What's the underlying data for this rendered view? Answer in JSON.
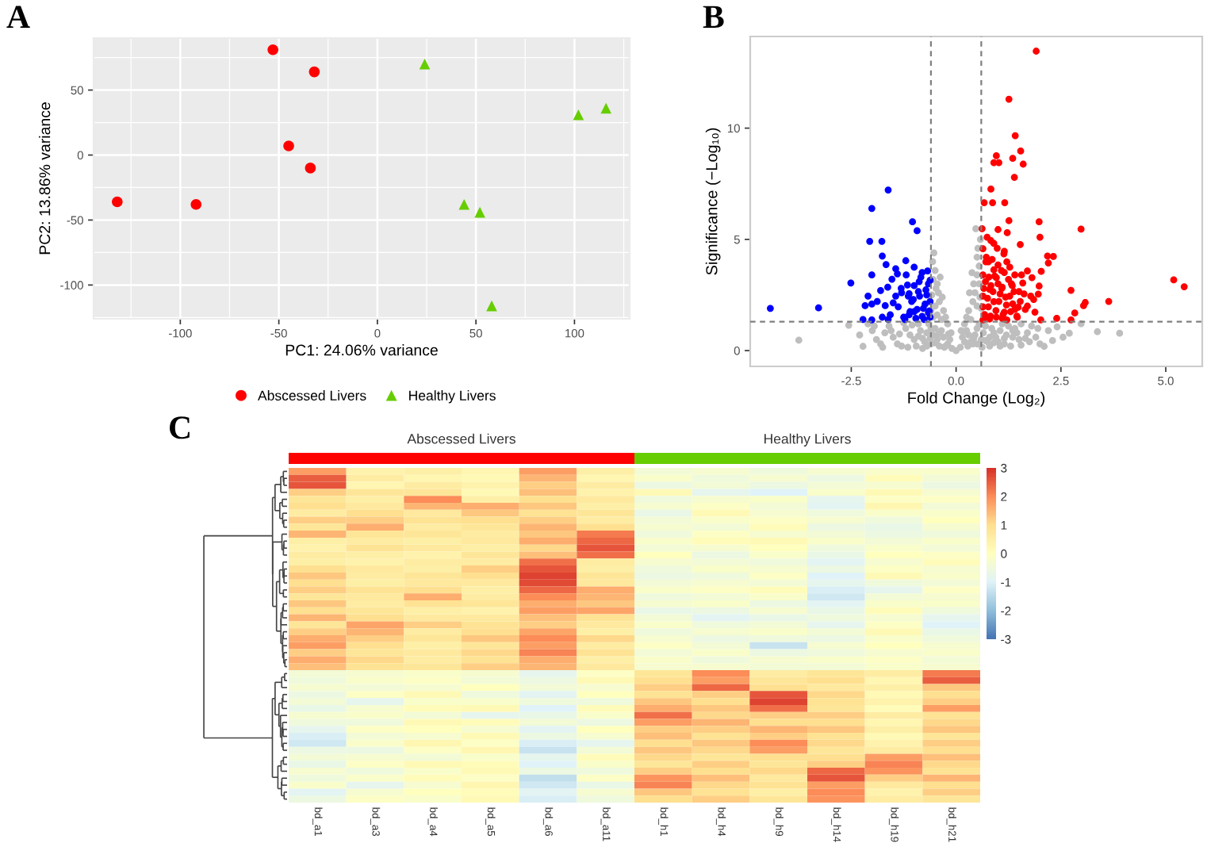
{
  "chart_data": [
    {
      "type": "scatter",
      "title": "A",
      "xlabel": "PC1: 24.06% variance",
      "ylabel": "PC2: 13.86% variance",
      "series": [
        {
          "name": "Abscessed Livers",
          "color": "#ff0000",
          "marker": "circle",
          "x": [
            -53,
            -32,
            -45,
            -34,
            -132,
            -92
          ],
          "values": [
            81,
            64,
            7,
            -10,
            -36,
            -38
          ]
        },
        {
          "name": "Healthy Livers",
          "color": "#66cd00",
          "marker": "triangle",
          "x": [
            24,
            102,
            116,
            44,
            52,
            58
          ],
          "values": [
            70,
            31,
            36,
            -38,
            -44,
            -116
          ]
        }
      ],
      "xlim": [
        -144,
        128
      ],
      "ylim": [
        -126,
        90
      ],
      "xticks": [
        -100,
        -50,
        0,
        50,
        100
      ],
      "yticks": [
        -100,
        -50,
        0,
        50
      ],
      "grid": true,
      "legend": "bottom"
    },
    {
      "type": "scatter",
      "title": "B",
      "xlabel": "Fold Change (Log₂)",
      "ylabel": "Significance (−Log₁₀)",
      "marker": "circle",
      "series": [
        {
          "color": "#bebebe",
          "x": [
            -3.75,
            -2.56,
            -2.22,
            -2.0,
            -1.8,
            -1.6,
            -1.5,
            -1.3,
            -1.2,
            -1.0,
            -0.9,
            -0.8,
            -0.7,
            -0.6,
            -0.5,
            -0.4,
            -0.3,
            -0.2,
            -0.1,
            0,
            0.1,
            0.2,
            0.3,
            0.4,
            0.5,
            0.6,
            0.7,
            0.8,
            0.9,
            1.0,
            1.1,
            1.2,
            1.3,
            1.4,
            1.5,
            1.65,
            1.8,
            2.0,
            2.1,
            2.2,
            2.41,
            2.7,
            2.98,
            3.37,
            3.9,
            -0.55,
            -0.45,
            -0.35,
            -0.5,
            -0.4,
            -0.58,
            -0.48,
            -0.55,
            -0.5,
            -0.56,
            -0.53,
            -0.45,
            -0.3,
            -0.25,
            -0.42,
            0.25,
            0.3,
            0.4,
            0.35,
            0.5,
            0.45,
            0.55,
            0.5,
            0.55,
            0.5,
            0.52,
            0.47,
            0.58,
            0.42,
            0.57,
            -1.9,
            -1.7,
            -1.4,
            -1.1,
            -0.95,
            -0.85,
            -0.75,
            -0.65,
            -0.55,
            -0.45,
            -0.35,
            -0.25,
            -0.15,
            0.15,
            0.25,
            0.35,
            0.45,
            0.55,
            0.65,
            0.75,
            0.85,
            0.95,
            1.05,
            1.15,
            1.25,
            1.35,
            1.45,
            1.55,
            1.7,
            1.9,
            -1.25,
            -0.6,
            -0.38,
            0.38,
            -0.33,
            0.32,
            -0.2,
            0.2,
            -0.12,
            0.12,
            -2.3,
            -2.1,
            -1.95,
            -1.75,
            -1.55,
            -1.35,
            -1.15,
            -1.05,
            -0.9,
            -0.8,
            -0.7,
            -0.62,
            -0.5,
            -0.42,
            -0.28,
            -0.18,
            0.18,
            0.28,
            0.42,
            0.5,
            0.62,
            0.7,
            0.8,
            0.9,
            1.05,
            1.15,
            1.35,
            1.55,
            1.75,
            1.95,
            2.3,
            2.55,
            -0.6,
            0.6
          ],
          "values": [
            0.47,
            1.14,
            0.19,
            0.9,
            0.3,
            1.1,
            0.6,
            0.2,
            1.0,
            0.5,
            1.2,
            0.1,
            0.8,
            0.3,
            1.0,
            0.2,
            0.6,
            0.3,
            0.1,
            0,
            0.15,
            0.4,
            0.7,
            0.3,
            1.0,
            0.5,
            1.1,
            0.2,
            0.8,
            0.4,
            1.2,
            0.7,
            0.2,
            1.0,
            0.5,
            0.55,
            1.1,
            0.3,
            0.19,
            0.9,
            1.07,
            0.78,
            1.21,
            0.85,
            0.78,
            1.5,
            1.6,
            1.4,
            2.0,
            2.2,
            2.5,
            2.8,
            3.2,
            3.6,
            4.0,
            4.39,
            3.0,
            1.8,
            1.5,
            2.6,
            1.5,
            1.8,
            2.2,
            1.4,
            2.0,
            2.6,
            3.0,
            3.4,
            3.8,
            4.2,
            4.6,
            5.48,
            5.0,
            3.0,
            2.4,
            0.5,
            0.8,
            0.3,
            0.7,
            0.2,
            0.9,
            0.4,
            1.2,
            0.7,
            0.5,
            0.9,
            0.2,
            0.5,
            0.6,
            0.9,
            0.4,
            0.7,
            1.2,
            0.8,
            0.4,
            1.0,
            0.6,
            0.9,
            0.3,
            1.1,
            0.6,
            0.8,
            1.2,
            0.8,
            0.6,
            1.25,
            1.0,
            3.3,
            3.5,
            2.4,
            2.6,
            1.2,
            1.2,
            0.8,
            0.9,
            0.7,
            1.2,
            1.1,
            0.15,
            0.9,
            0.75,
            0.15,
            1.15,
            0.65,
            0.55,
            0.2,
            0.55,
            0.35,
            0.75,
            0.15,
            0.75,
            0.85,
            0.2,
            0.55,
            0.3,
            0.15,
            0.45,
            0.6,
            0.35,
            0.2,
            0.55,
            0.9,
            0.25,
            0.4,
            1.0,
            0.45,
            0.6,
            1.8,
            1.9
          ]
        },
        {
          "color": "#0000ff",
          "x": [
            -4.43,
            -3.28,
            -2.51,
            -2.01,
            -1.62,
            -2.06,
            -1.77,
            -1.04,
            -0.93,
            -1.76,
            -1.67,
            -1.2,
            -2.01,
            -2.22,
            -1.44,
            -1.53,
            -1.63,
            -2.1,
            -1.88,
            -2.17,
            -1.19,
            -1.0,
            -0.81,
            -0.68,
            -0.62,
            -0.87,
            -1.06,
            -1.38,
            -1.57,
            -1.76,
            -2.01,
            -1.12,
            -0.81,
            -0.62,
            -1.31,
            -0.74,
            -0.93,
            -1.25,
            -1.44,
            -0.62,
            -0.72,
            -1.12,
            -1.0,
            -0.64,
            -1.69,
            -2.01,
            -0.66,
            -0.7,
            -0.78,
            -0.84,
            -0.9,
            -0.96,
            -1.02,
            -1.1,
            -1.16,
            -1.22,
            -1.3,
            -1.4,
            -0.66,
            -0.76,
            -0.88,
            -1.0,
            -1.14,
            -1.5,
            -1.62,
            -1.8
          ],
          "values": [
            1.9,
            1.92,
            3.04,
            6.39,
            7.22,
            4.91,
            4.91,
            5.79,
            5.39,
            4.25,
            3.87,
            4.04,
            3.4,
            1.4,
            3.68,
            3.21,
            2.85,
            2.45,
            2.21,
            2.02,
            3.4,
            2.92,
            3.51,
            3.58,
            3.16,
            2.45,
            2.21,
            1.97,
            1.61,
            1.5,
            1.38,
            1.61,
            1.54,
            1.5,
            2.8,
            2.09,
            1.85,
            1.5,
            2.45,
            2.21,
            2.73,
            2.56,
            3.75,
            1.78,
            2.02,
            2.09,
            1.7,
            2.5,
            1.9,
            3.3,
            2.65,
            1.45,
            2.3,
            1.75,
            2.95,
            1.4,
            2.6,
            3.45,
            3.0,
            1.4,
            3.1,
            1.75,
            2.45,
            2.15,
            1.4,
            2.7
          ]
        },
        {
          "color": "#ff0000",
          "x": [
            1.91,
            1.26,
            1.41,
            0.96,
            1.35,
            1.54,
            1.6,
            1.39,
            0.9,
            1.02,
            0.83,
            0.67,
            0.87,
            1.16,
            1.26,
            1.98,
            2.98,
            2.0,
            1.53,
            0.62,
            1.0,
            0.83,
            1.15,
            2.18,
            2.32,
            2.2,
            1.7,
            2.03,
            5.19,
            5.44,
            2.74,
            1.98,
            1.96,
            3.64,
            3.08,
            3.04,
            2.83,
            2.74,
            2.4,
            2.02,
            0.71,
            0.64,
            0.9,
            1.15,
            1.4,
            1.59,
            1.78,
            1.65,
            1.46,
            1.21,
            0.96,
            0.64,
            0.77,
            1.02,
            1.28,
            1.53,
            0.64,
            0.83,
            1.09,
            1.34,
            0.64,
            1.15,
            1.4,
            0.96,
            0.77,
            0.64,
            0.71,
            1.21,
            1.81,
            1.88,
            0.9,
            0.68,
            0.75,
            0.82,
            0.88,
            0.95,
            1.05,
            1.12,
            1.2,
            1.3,
            1.38,
            1.45,
            0.7,
            0.8,
            0.9,
            1.0,
            1.1,
            1.25,
            1.35,
            1.5,
            0.66,
            0.78,
            0.92,
            1.08,
            1.18,
            1.32,
            1.48,
            1.62,
            0.72,
            0.86,
            1.0,
            1.14,
            1.28,
            1.7,
            1.85,
            0.74,
            0.98,
            1.22,
            1.56,
            0.8,
            1.1
          ],
          "values": [
            13.46,
            11.3,
            9.66,
            8.76,
            8.64,
            8.97,
            8.38,
            7.79,
            8.45,
            8.45,
            7.26,
            6.65,
            6.65,
            6.65,
            5.84,
            5.79,
            5.46,
            5.1,
            4.77,
            5.48,
            5.44,
            4.94,
            4.46,
            4.25,
            4.23,
            3.94,
            3.58,
            3.56,
            3.18,
            2.87,
            2.71,
            2.9,
            2.54,
            2.21,
            2.16,
            2.02,
            1.69,
            1.38,
            1.45,
            1.38,
            1.5,
            3.4,
            3.63,
            3.51,
            3.4,
            3.04,
            2.45,
            1.85,
            1.5,
            1.38,
            1.5,
            1.38,
            1.97,
            2.21,
            2.45,
            2.21,
            2.45,
            2.92,
            2.8,
            2.92,
            1.97,
            1.73,
            1.85,
            3.28,
            3.99,
            4.58,
            3.99,
            3.99,
            3.28,
            1.73,
            4.82,
            1.62,
            2.35,
            1.55,
            2.65,
            1.8,
            2.55,
            1.62,
            2.05,
            1.75,
            2.65,
            1.55,
            3.1,
            2.75,
            2.2,
            3.0,
            2.85,
            3.2,
            2.1,
            2.65,
            2.8,
            3.3,
            3.35,
            3.6,
            2.4,
            3.0,
            1.95,
            2.55,
            4.2,
            4.1,
            3.85,
            4.35,
            3.75,
            2.0,
            2.3,
            5.1,
            4.6,
            5.3,
            3.4,
            1.42,
            1.45
          ]
        }
      ],
      "xlim": [
        -4.91,
        5.87
      ],
      "ylim": [
        -0.71,
        14.12
      ],
      "xticks": [
        -2.5,
        {
          "value": 0,
          "label": "0.0"
        },
        2.5,
        {
          "value": 5,
          "label": "5.0"
        }
      ],
      "yticks": [
        0,
        5,
        10
      ],
      "ref_lines": [
        {
          "axis": "x",
          "value": -0.6,
          "color": "#808080",
          "line_style": "dashed"
        },
        {
          "axis": "x",
          "value": 0.6,
          "color": "#808080",
          "line_style": "dashed"
        },
        {
          "axis": "y",
          "value": 1.3,
          "color": "#808080",
          "line_style": "dashed"
        }
      ]
    },
    {
      "type": "heatmap",
      "title": "C",
      "tick_labels": "x",
      "categories": [
        "bd_a1",
        "bd_a3",
        "bd_a4",
        "bd_a5",
        "bd_a6",
        "bd_a11",
        "bd_h1",
        "bd_h4",
        "bd_h9",
        "bd_h14",
        "bd_h19",
        "bd_h21"
      ],
      "y_categories": [
        null,
        null,
        null,
        null,
        null,
        null,
        null,
        null,
        null,
        null,
        null,
        null,
        null,
        null,
        null,
        null,
        null,
        null,
        null,
        null,
        null,
        null,
        null,
        null,
        null,
        null,
        null,
        null,
        null,
        null,
        null,
        null,
        null,
        null,
        null,
        null,
        null,
        null,
        null,
        null,
        null,
        null,
        null,
        null,
        null,
        null,
        null,
        null
      ],
      "annotations": [
        "Abscessed Livers",
        "Healthy Livers"
      ],
      "clim": [
        -3,
        3
      ],
      "cticks": [
        -3,
        -2,
        -1,
        0,
        1,
        2,
        3
      ],
      "cells": [
        [
          1.8,
          0.4,
          0.5,
          0.3,
          1.8,
          0.5,
          -0.4,
          -0.3,
          -0.5,
          -0.3,
          -0.2,
          -0.2
        ],
        [
          2.5,
          0.6,
          0.3,
          0.2,
          1.5,
          0.3,
          -0.2,
          -0.5,
          -0.3,
          -0.6,
          0.1,
          -0.4
        ],
        [
          2.6,
          0.3,
          0.6,
          0.4,
          1.2,
          0.6,
          -0.6,
          -0.4,
          -0.6,
          -0.4,
          -0.3,
          -0.6
        ],
        [
          1.2,
          0.8,
          0.8,
          0.2,
          1.4,
          0.4,
          0.2,
          -0.8,
          -1.0,
          -0.2,
          0.2,
          -0.3
        ],
        [
          0.8,
          0.5,
          2.0,
          0.5,
          1.0,
          0.7,
          -0.5,
          -0.3,
          -0.2,
          -0.8,
          -0.1,
          -0.1
        ],
        [
          1.0,
          0.7,
          1.5,
          1.6,
          1.3,
          0.5,
          -0.3,
          -0.1,
          -0.4,
          -0.9,
          0.3,
          -0.4
        ],
        [
          0.6,
          1.0,
          0.7,
          1.3,
          0.9,
          0.8,
          -0.7,
          0.2,
          -0.3,
          -0.5,
          -0.2,
          -0.2
        ],
        [
          1.2,
          1.2,
          0.9,
          1.0,
          1.2,
          0.6,
          -0.4,
          -0.2,
          -0.1,
          -0.3,
          -0.5,
          0.0
        ],
        [
          0.8,
          1.6,
          0.6,
          0.8,
          1.5,
          1.0,
          -0.3,
          -0.4,
          0.1,
          -0.6,
          -0.7,
          -0.3
        ],
        [
          1.5,
          0.8,
          0.8,
          0.6,
          1.3,
          2.2,
          -0.5,
          -0.1,
          -0.3,
          -0.4,
          -0.6,
          -0.5
        ],
        [
          0.5,
          0.6,
          0.5,
          0.7,
          1.6,
          2.4,
          -0.2,
          0.1,
          0.2,
          -0.2,
          -0.4,
          -0.2
        ],
        [
          0.4,
          0.9,
          0.7,
          0.5,
          1.1,
          2.6,
          -0.4,
          -0.3,
          0.0,
          -0.5,
          -0.2,
          -0.4
        ],
        [
          0.6,
          0.5,
          0.4,
          0.8,
          1.4,
          2.3,
          0.0,
          -0.6,
          -0.2,
          -0.7,
          0.0,
          -0.1
        ],
        [
          0.5,
          0.4,
          0.6,
          0.6,
          2.3,
          0.6,
          -0.3,
          -0.4,
          -0.5,
          -0.9,
          -0.3,
          0.1
        ],
        [
          1.0,
          0.7,
          0.5,
          1.2,
          2.6,
          0.5,
          -0.5,
          -0.2,
          -0.3,
          -0.6,
          -0.1,
          -0.3
        ],
        [
          1.3,
          0.6,
          0.8,
          1.0,
          2.8,
          0.8,
          -0.6,
          -0.5,
          -0.1,
          -1.0,
          0.2,
          -0.2
        ],
        [
          1.0,
          0.5,
          0.7,
          0.7,
          2.7,
          0.7,
          -0.4,
          -0.3,
          -0.4,
          -0.8,
          -0.5,
          -0.4
        ],
        [
          1.2,
          0.9,
          1.0,
          0.5,
          2.4,
          1.6,
          -0.2,
          -0.1,
          0.1,
          -1.1,
          -0.8,
          -0.1
        ],
        [
          0.8,
          0.7,
          1.6,
          0.6,
          2.0,
          1.5,
          -0.5,
          -0.4,
          -0.2,
          -1.2,
          -0.4,
          -0.3
        ],
        [
          1.3,
          0.6,
          0.9,
          0.8,
          1.6,
          1.3,
          -0.3,
          -0.2,
          -0.6,
          -0.9,
          -0.2,
          -0.2
        ],
        [
          1.0,
          0.8,
          0.5,
          0.4,
          1.8,
          1.7,
          -0.7,
          -0.6,
          -0.3,
          -0.7,
          0.1,
          -0.5
        ],
        [
          1.5,
          1.0,
          0.7,
          0.7,
          1.4,
          0.9,
          -0.4,
          -0.9,
          -0.7,
          -0.5,
          -0.3,
          -0.8
        ],
        [
          0.8,
          1.7,
          1.2,
          0.9,
          1.2,
          0.7,
          -0.2,
          -0.5,
          -0.4,
          -0.8,
          -0.1,
          -1.0
        ],
        [
          1.2,
          1.5,
          0.6,
          1.0,
          1.7,
          0.5,
          -0.5,
          -0.3,
          -0.2,
          -0.4,
          0.2,
          -0.7
        ],
        [
          1.6,
          1.2,
          0.8,
          1.3,
          2.0,
          1.1,
          -0.3,
          -0.6,
          -0.5,
          -0.6,
          -0.2,
          -0.5
        ],
        [
          1.8,
          1.0,
          0.5,
          0.8,
          1.8,
          0.6,
          -0.1,
          -0.4,
          -1.3,
          -0.3,
          0.0,
          -0.3
        ],
        [
          1.2,
          0.8,
          0.7,
          1.1,
          2.1,
          0.9,
          -0.4,
          -0.2,
          -0.6,
          -0.5,
          -0.3,
          -0.2
        ],
        [
          1.6,
          1.1,
          0.6,
          0.9,
          1.6,
          0.5,
          -0.2,
          -0.5,
          -0.3,
          -0.2,
          -0.1,
          -0.4
        ],
        [
          1.4,
          0.9,
          0.8,
          1.2,
          1.5,
          0.7,
          -0.3,
          -0.3,
          -0.4,
          -0.4,
          -0.2,
          -0.3
        ],
        [
          -0.4,
          -0.3,
          -0.2,
          -0.3,
          -0.8,
          -0.1,
          0.8,
          2.0,
          0.6,
          0.8,
          0.6,
          2.2
        ],
        [
          -0.5,
          -0.2,
          -0.1,
          -0.4,
          -0.6,
          0.2,
          1.0,
          1.8,
          0.8,
          1.0,
          0.3,
          2.5
        ],
        [
          -0.3,
          -0.4,
          -0.3,
          0.0,
          -0.4,
          -0.3,
          1.2,
          2.4,
          1.0,
          0.7,
          0.5,
          1.3
        ],
        [
          -0.6,
          -0.1,
          0.2,
          -0.5,
          -0.9,
          0.0,
          0.9,
          1.2,
          2.6,
          1.1,
          0.2,
          1.0
        ],
        [
          -0.4,
          -0.8,
          -0.2,
          -0.2,
          -0.5,
          -0.5,
          1.3,
          1.0,
          2.8,
          0.9,
          0.4,
          1.2
        ],
        [
          -0.7,
          -0.3,
          0.1,
          0.2,
          -1.0,
          0.1,
          1.6,
          1.3,
          2.3,
          0.8,
          0.1,
          1.8
        ],
        [
          -0.3,
          -0.2,
          -0.4,
          -0.8,
          -0.7,
          -0.2,
          2.3,
          1.1,
          1.2,
          1.2,
          0.6,
          0.9
        ],
        [
          -0.5,
          -0.5,
          0.2,
          0.1,
          -0.4,
          -0.6,
          1.8,
          1.5,
          1.0,
          1.0,
          0.3,
          1.1
        ],
        [
          -0.8,
          -0.1,
          0.0,
          -0.3,
          -0.9,
          0.0,
          1.2,
          1.2,
          1.5,
          1.3,
          0.5,
          1.3
        ],
        [
          -1.1,
          -0.4,
          -0.3,
          0.2,
          -0.6,
          -0.3,
          1.4,
          0.9,
          1.2,
          0.9,
          0.2,
          0.8
        ],
        [
          -1.2,
          -0.2,
          0.3,
          -0.1,
          -1.1,
          -0.8,
          1.0,
          1.3,
          2.0,
          1.1,
          0.4,
          1.2
        ],
        [
          -0.6,
          -0.6,
          -0.1,
          0.3,
          -1.3,
          -0.4,
          1.3,
          1.1,
          1.8,
          0.8,
          0.6,
          1.0
        ],
        [
          -0.4,
          -0.3,
          -0.4,
          -0.2,
          -0.8,
          0.1,
          1.1,
          0.8,
          1.0,
          1.0,
          1.8,
          1.4
        ],
        [
          -0.7,
          -0.1,
          0.2,
          0.1,
          -1.0,
          -0.2,
          0.8,
          1.2,
          0.8,
          1.2,
          2.1,
          1.1
        ],
        [
          -0.3,
          -0.5,
          -0.2,
          0.2,
          -0.6,
          -0.5,
          1.2,
          1.0,
          1.1,
          2.4,
          1.9,
          0.9
        ],
        [
          -0.5,
          -0.2,
          0.1,
          -0.1,
          -1.4,
          -0.1,
          1.9,
          1.4,
          0.7,
          2.6,
          1.2,
          1.5
        ],
        [
          -0.2,
          -0.8,
          -0.3,
          0.3,
          -1.2,
          -0.7,
          2.1,
          1.1,
          0.9,
          1.8,
          0.7,
          1.0
        ],
        [
          -0.9,
          -0.3,
          0.0,
          0.1,
          -0.9,
          -0.3,
          1.3,
          0.9,
          0.5,
          2.0,
          0.4,
          1.2
        ],
        [
          -0.6,
          -0.1,
          -0.2,
          0.2,
          -1.1,
          -0.5,
          1.0,
          1.2,
          0.8,
          1.9,
          0.6,
          0.8
        ]
      ]
    }
  ]
}
